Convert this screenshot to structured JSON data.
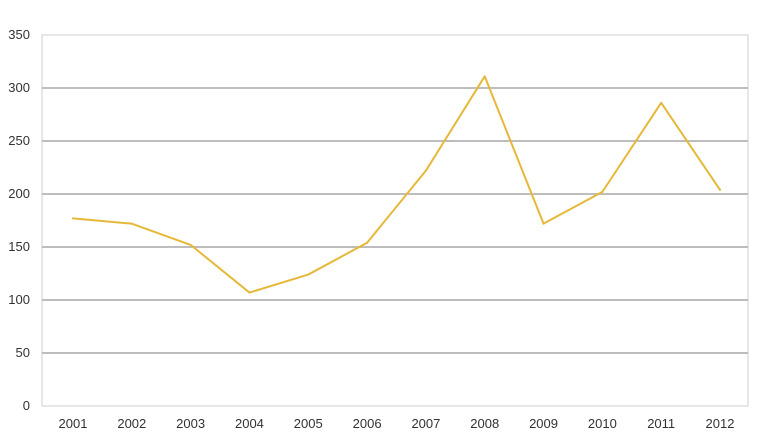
{
  "chart_data": {
    "type": "line",
    "title": "",
    "xlabel": "",
    "ylabel": "",
    "categories": [
      "2001",
      "2002",
      "2003",
      "2004",
      "2005",
      "2006",
      "2007",
      "2008",
      "2009",
      "2010",
      "2011",
      "2012"
    ],
    "series": [
      {
        "values": [
          177,
          172,
          152,
          107,
          124,
          154,
          222,
          311,
          172,
          202,
          286,
          204
        ]
      }
    ],
    "ylim": [
      0,
      350
    ],
    "yticks": [
      "0",
      "50",
      "100",
      "150",
      "200",
      "250",
      "300",
      "350"
    ],
    "grid": true,
    "legend": "none",
    "colors": {
      "series": "#e6b83a",
      "grid": "#bdbdbd",
      "text": "#333333"
    }
  }
}
